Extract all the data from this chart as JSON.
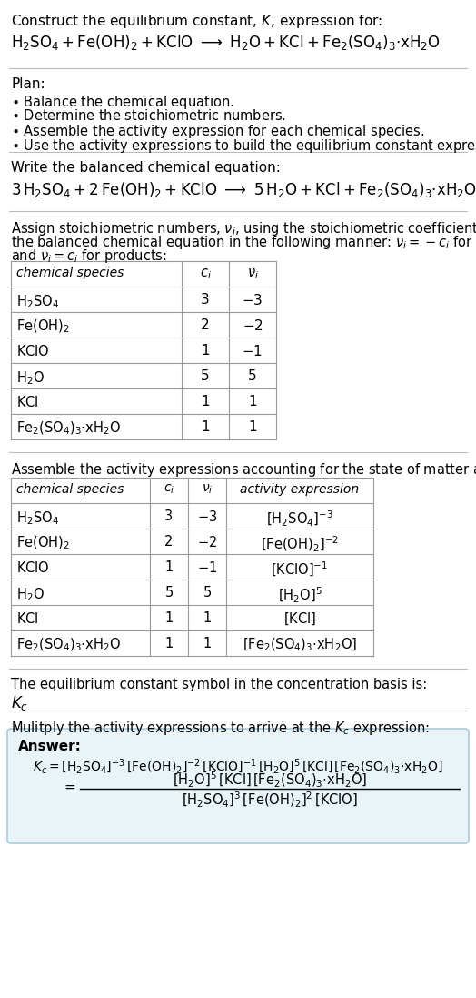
{
  "bg_color": "#ffffff",
  "text_color": "#000000",
  "table_border": "#999999",
  "answer_bg": "#e8f4f8",
  "answer_border": "#aaccdd",
  "figsize": [
    5.24,
    10.97
  ],
  "dpi": 100,
  "table1_rows": [
    [
      "$\\mathrm{H_2SO_4}$",
      "3",
      "$-3$"
    ],
    [
      "$\\mathrm{Fe(OH)_2}$",
      "2",
      "$-2$"
    ],
    [
      "$\\mathrm{KClO}$",
      "1",
      "$-1$"
    ],
    [
      "$\\mathrm{H_2O}$",
      "5",
      "5"
    ],
    [
      "$\\mathrm{KCl}$",
      "1",
      "1"
    ],
    [
      "$\\mathrm{Fe_2(SO_4)_3{\\cdot}xH_2O}$",
      "1",
      "1"
    ]
  ],
  "table2_rows": [
    [
      "$\\mathrm{H_2SO_4}$",
      "3",
      "$-3$",
      "$[\\mathrm{H_2SO_4}]^{-3}$"
    ],
    [
      "$\\mathrm{Fe(OH)_2}$",
      "2",
      "$-2$",
      "$[\\mathrm{Fe(OH)_2}]^{-2}$"
    ],
    [
      "$\\mathrm{KClO}$",
      "1",
      "$-1$",
      "$[\\mathrm{KClO}]^{-1}$"
    ],
    [
      "$\\mathrm{H_2O}$",
      "5",
      "5",
      "$[\\mathrm{H_2O}]^5$"
    ],
    [
      "$\\mathrm{KCl}$",
      "1",
      "1",
      "$[\\mathrm{KCl}]$"
    ],
    [
      "$\\mathrm{Fe_2(SO_4)_3{\\cdot}xH_2O}$",
      "1",
      "1",
      "$[\\mathrm{Fe_2(SO_4)_3{\\cdot}xH_2O}]$"
    ]
  ]
}
